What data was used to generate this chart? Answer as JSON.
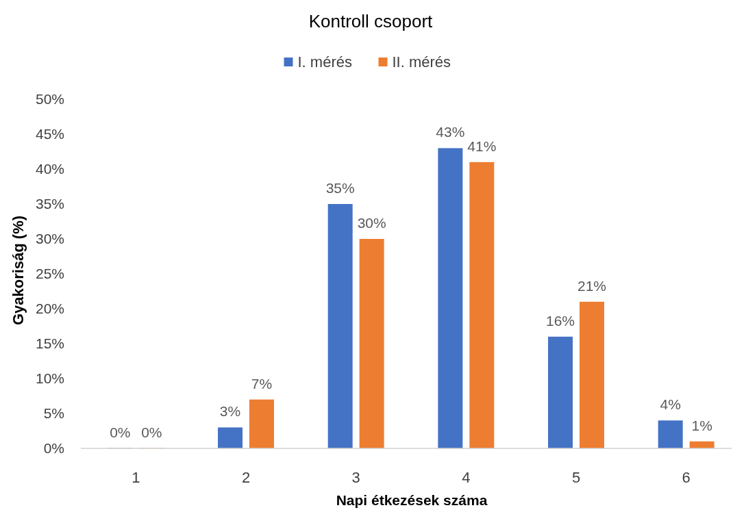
{
  "chart_data": {
    "type": "bar",
    "title": "Kontroll csoport",
    "xlabel": "Napi étkezések száma",
    "ylabel": "Gyakoriság (%)",
    "categories": [
      "1",
      "2",
      "3",
      "4",
      "5",
      "6"
    ],
    "series": [
      {
        "name": "I. mérés",
        "color": "#4472c4",
        "values": [
          0,
          3,
          35,
          43,
          16,
          4
        ],
        "value_labels": [
          "0%",
          "3%",
          "35%",
          "43%",
          "16%",
          "4%"
        ]
      },
      {
        "name": "II. mérés",
        "color": "#ed7d31",
        "values": [
          0,
          7,
          30,
          41,
          21,
          1
        ],
        "value_labels": [
          "0%",
          "7%",
          "30%",
          "41%",
          "21%",
          "1%"
        ]
      }
    ],
    "ylim": [
      0,
      50
    ],
    "yticks": [
      {
        "value": 0,
        "label": "0%"
      },
      {
        "value": 5,
        "label": "5%"
      },
      {
        "value": 10,
        "label": "10%"
      },
      {
        "value": 15,
        "label": "15%"
      },
      {
        "value": 20,
        "label": "20%"
      },
      {
        "value": 25,
        "label": "25%"
      },
      {
        "value": 30,
        "label": "30%"
      },
      {
        "value": 35,
        "label": "35%"
      },
      {
        "value": 40,
        "label": "40%"
      },
      {
        "value": 45,
        "label": "45%"
      },
      {
        "value": 50,
        "label": "50%"
      }
    ],
    "grid": false,
    "legend": "top"
  }
}
